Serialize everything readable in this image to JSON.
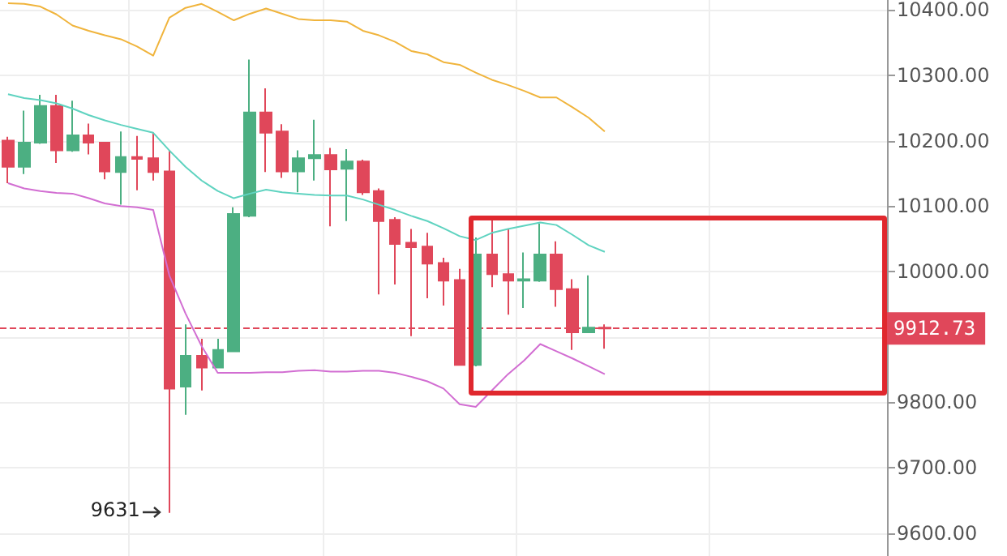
{
  "chart_data": {
    "type": "candlestick",
    "categories": [
      null,
      null,
      null,
      null,
      null,
      null,
      null,
      null,
      null,
      null,
      null,
      null,
      null,
      null,
      null,
      null,
      null,
      null,
      null,
      null,
      null,
      null,
      null,
      null,
      null,
      null,
      null,
      null,
      null,
      null,
      null,
      null,
      null,
      null,
      null,
      null,
      null,
      null
    ],
    "series": [
      {
        "type": "candlestick",
        "ohlc": [
          [
            10200,
            10206,
            10135,
            10160
          ],
          [
            10160,
            10246,
            10149,
            10197
          ],
          [
            10197,
            10270,
            10195,
            10253
          ],
          [
            10253,
            10270,
            10166,
            10185
          ],
          [
            10185,
            10261,
            10183,
            10208
          ],
          [
            10208,
            10226,
            10179,
            10197
          ],
          [
            10197,
            10198,
            10141,
            10153
          ],
          [
            10152,
            10214,
            10102,
            10175
          ],
          [
            10175,
            10207,
            10124,
            10172
          ],
          [
            10173,
            10212,
            10139,
            10152
          ],
          [
            10153,
            10185,
            9631,
            9821
          ],
          [
            9824,
            9919,
            9781,
            9871
          ],
          [
            9871,
            9897,
            9818,
            9853
          ],
          [
            9853,
            9897,
            9852,
            9880
          ],
          [
            9878,
            10098,
            9877,
            10088
          ],
          [
            10085,
            10324,
            10083,
            10243
          ],
          [
            10243,
            10280,
            10152,
            10212
          ],
          [
            10214,
            10225,
            10143,
            10153
          ],
          [
            10153,
            10185,
            10121,
            10173
          ],
          [
            10173,
            10232,
            10139,
            10178
          ],
          [
            10178,
            10189,
            10069,
            10156
          ],
          [
            10157,
            10187,
            10077,
            10168
          ],
          [
            10168,
            10171,
            10117,
            10121
          ],
          [
            10123,
            10127,
            9965,
            10077
          ],
          [
            10079,
            10083,
            9980,
            10042
          ],
          [
            10044,
            10065,
            9901,
            10037
          ],
          [
            10038,
            10059,
            9959,
            10012
          ],
          [
            10013,
            10021,
            9948,
            9986
          ],
          [
            9987,
            10004,
            9856,
            9857
          ],
          [
            9857,
            10052,
            9855,
            10026
          ],
          [
            10026,
            10085,
            9976,
            9996
          ],
          [
            9996,
            10065,
            9934,
            9986
          ],
          [
            9986,
            10029,
            9944,
            9988
          ],
          [
            9986,
            10073,
            9984,
            10026
          ],
          [
            10026,
            10046,
            9946,
            9973
          ],
          [
            9973,
            9988,
            9880,
            9907
          ],
          [
            9907,
            9994,
            9906,
            9914
          ],
          [
            9914,
            9919,
            9882,
            9912.73
          ]
        ],
        "colors": [
          "#e0475a",
          "#4caf82",
          "#4caf82",
          "#e0475a",
          "#4caf82",
          "#e0475a",
          "#e0475a",
          "#4caf82",
          "#e0475a",
          "#e0475a",
          "#e0475a",
          "#4caf82",
          "#e0475a",
          "#4caf82",
          "#4caf82",
          "#4caf82",
          "#e0475a",
          "#e0475a",
          "#4caf82",
          "#4caf82",
          "#e0475a",
          "#4caf82",
          "#e0475a",
          "#e0475a",
          "#e0475a",
          "#e0475a",
          "#e0475a",
          "#e0475a",
          "#e0475a",
          "#4caf82",
          "#e0475a",
          "#e0475a",
          "#4caf82",
          "#4caf82",
          "#e0475a",
          "#e0475a",
          "#4caf82",
          "#e0475a"
        ]
      },
      {
        "type": "line",
        "color": "#f0b43c",
        "values": [
          10410,
          10409,
          10405,
          10393,
          10376,
          10368,
          10361,
          10355,
          10344,
          10330,
          10388,
          10403,
          10409,
          10397,
          10384,
          10394,
          10402,
          10394,
          10386,
          10384,
          10384,
          10382,
          10368,
          10361,
          10351,
          10337,
          10332,
          10320,
          10316,
          10304,
          10293,
          10285,
          10276,
          10266,
          10266,
          10251,
          10235,
          10214
        ]
      },
      {
        "type": "line",
        "color": "#5fd3c0",
        "values": [
          10271,
          10265,
          10262,
          10257,
          10249,
          10239,
          10231,
          10224,
          10218,
          10212,
          10185,
          10160,
          10139,
          10123,
          10112,
          10119,
          10125,
          10121,
          10119,
          10117,
          10116,
          10116,
          10110,
          10102,
          10094,
          10085,
          10077,
          10066,
          10054,
          10048,
          10059,
          10065,
          10070,
          10075,
          10071,
          10056,
          10040,
          10030
        ]
      },
      {
        "type": "line",
        "color": "#d26ed2",
        "values": [
          10135,
          10127,
          10123,
          10120,
          10119,
          10112,
          10104,
          10100,
          10098,
          10094,
          9994,
          9936,
          9886,
          9845,
          9845,
          9845,
          9846,
          9846,
          9848,
          9849,
          9847,
          9847,
          9848,
          9848,
          9845,
          9839,
          9832,
          9821,
          9797,
          9793,
          9818,
          9843,
          9864,
          9889,
          9878,
          9867,
          9855,
          9843
        ]
      }
    ],
    "ylim": [
      9565,
      10415
    ],
    "yticks": [
      {
        "value": 9600,
        "label": "9600.00"
      },
      {
        "value": 9700,
        "label": "9700.00"
      },
      {
        "value": 9800,
        "label": "9800.00"
      },
      {
        "value": 9900,
        "label": null
      },
      {
        "value": 10000,
        "label": "10000.00"
      },
      {
        "value": 10100,
        "label": "10100.00"
      },
      {
        "value": 10200,
        "label": "10200.00"
      },
      {
        "value": 10300,
        "label": "10300.00"
      },
      {
        "value": 10400,
        "label": "10400.00"
      }
    ],
    "ref_lines": [
      {
        "axis": "y",
        "value": 9912.73,
        "label": "9912.73",
        "color": "#e0475a",
        "line_style": "dashed"
      }
    ],
    "annotations": [
      "9631"
    ],
    "grid": true,
    "marker": "none"
  }
}
